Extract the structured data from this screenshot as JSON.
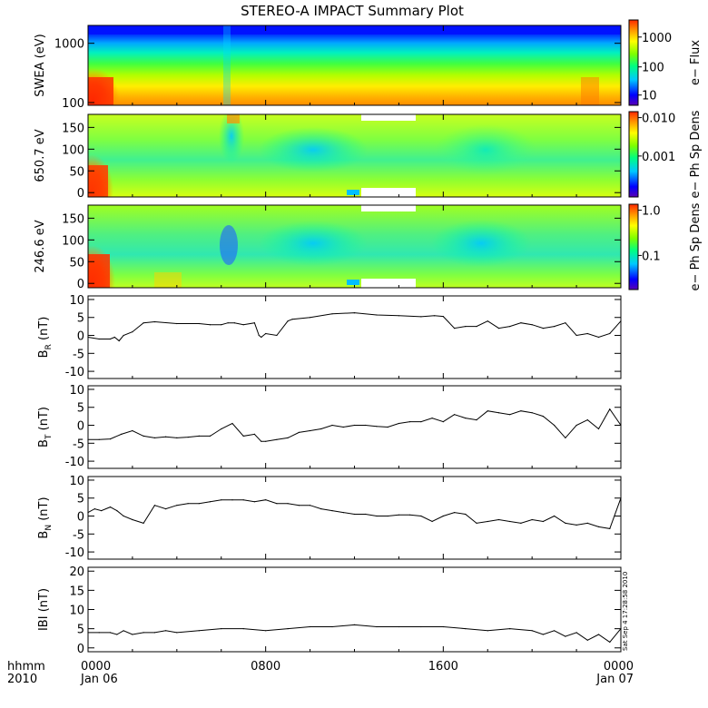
{
  "title": "STEREO-A IMPACT Summary Plot",
  "timestamp": "Sat Sep  4 17:28:58 2010",
  "time_axis": {
    "hhmm_label": "hhmm",
    "year_label": "2010",
    "ticks": [
      {
        "t": 0,
        "label": "0000",
        "sublabel": "Jan 06"
      },
      {
        "t": 8,
        "label": "0800",
        "sublabel": ""
      },
      {
        "t": 16,
        "label": "1600",
        "sublabel": ""
      },
      {
        "t": 24,
        "label": "0000",
        "sublabel": "Jan 07"
      }
    ],
    "range_hours": [
      0,
      24
    ]
  },
  "spectrograms": [
    {
      "id": "swea",
      "ylabel": "SWEA (eV)",
      "scale": "log",
      "ylim": [
        90,
        2000
      ],
      "yticks": [
        {
          "v": 100,
          "label": "100"
        },
        {
          "v": 1000,
          "label": "1000"
        }
      ],
      "cbar_label": "e− Flux",
      "cbar_ticks": [
        {
          "f": 0.12,
          "label": "10"
        },
        {
          "f": 0.45,
          "label": "100"
        },
        {
          "f": 0.8,
          "label": "1000"
        }
      ]
    },
    {
      "id": "pad650",
      "ylabel": "650.7 eV",
      "scale": "linear",
      "ylim": [
        -10,
        180
      ],
      "yticks": [
        {
          "v": 0,
          "label": "0"
        },
        {
          "v": 50,
          "label": "50"
        },
        {
          "v": 100,
          "label": "100"
        },
        {
          "v": 150,
          "label": "150"
        }
      ],
      "cbar_label": "e− Ph Sp Dens",
      "cbar_ticks": [
        {
          "f": 0.48,
          "label": "0.001"
        },
        {
          "f": 0.93,
          "label": "0.010"
        }
      ]
    },
    {
      "id": "pad246",
      "ylabel": "246.6 eV",
      "scale": "linear",
      "ylim": [
        -10,
        180
      ],
      "yticks": [
        {
          "v": 0,
          "label": "0"
        },
        {
          "v": 50,
          "label": "50"
        },
        {
          "v": 100,
          "label": "100"
        },
        {
          "v": 150,
          "label": "150"
        }
      ],
      "cbar_label": "e− Ph Sp Dens",
      "cbar_ticks": [
        {
          "f": 0.4,
          "label": "0.1"
        },
        {
          "f": 0.93,
          "label": "1.0"
        }
      ]
    }
  ],
  "chart_data": [
    {
      "type": "line",
      "id": "br",
      "ylabel_main": "B",
      "ylabel_sub": "R",
      "ylabel_unit": " (nT)",
      "ylim": [
        -12,
        11
      ],
      "yticks": [
        -10,
        -5,
        0,
        5,
        10
      ],
      "x": [
        0,
        0.5,
        1,
        1.2,
        1.4,
        1.6,
        2,
        2.5,
        3,
        4,
        5,
        5.5,
        6,
        6.3,
        6.6,
        7,
        7.5,
        7.7,
        7.8,
        8,
        8.5,
        9,
        9.2,
        10,
        11,
        12,
        13,
        14,
        15,
        15.6,
        16,
        16.5,
        17,
        17.5,
        18,
        18.5,
        19,
        19.5,
        20,
        20.5,
        21,
        21.5,
        22,
        22.5,
        23,
        23.5,
        24
      ],
      "y": [
        -0.5,
        -1,
        -1,
        -0.5,
        -1.5,
        0,
        1,
        3.5,
        3.8,
        3.3,
        3.3,
        3,
        3,
        3.5,
        3.5,
        3,
        3.5,
        0,
        -0.5,
        0.5,
        0,
        4,
        4.5,
        5,
        6,
        6.3,
        5.7,
        5.5,
        5.2,
        5.5,
        5.3,
        2,
        2.5,
        2.5,
        4,
        2,
        2.5,
        3.5,
        3,
        2,
        2.5,
        3.5,
        0,
        0.5,
        -0.5,
        0.5,
        4
      ]
    },
    {
      "type": "line",
      "id": "bt",
      "ylabel_main": "B",
      "ylabel_sub": "T",
      "ylabel_unit": " (nT)",
      "ylim": [
        -12,
        11
      ],
      "yticks": [
        -10,
        -5,
        0,
        5,
        10
      ],
      "x": [
        0,
        0.5,
        1,
        1.5,
        2,
        2.5,
        3,
        3.5,
        4,
        4.5,
        5,
        5.5,
        6,
        6.5,
        7,
        7.5,
        7.8,
        8,
        8.5,
        9,
        9.5,
        10,
        10.5,
        11,
        11.5,
        12,
        12.5,
        13,
        13.5,
        14,
        14.5,
        15,
        15.5,
        16,
        16.5,
        17,
        17.5,
        18,
        18.5,
        19,
        19.5,
        20,
        20.5,
        21,
        21.5,
        22,
        22.5,
        23,
        23.5,
        24
      ],
      "y": [
        -4,
        -4,
        -3.8,
        -2.5,
        -1.5,
        -3,
        -3.5,
        -3.2,
        -3.5,
        -3.3,
        -3,
        -3,
        -1,
        0.5,
        -3,
        -2.5,
        -4.5,
        -4.5,
        -4,
        -3.5,
        -2,
        -1.5,
        -1,
        0,
        -0.5,
        0,
        0,
        -0.3,
        -0.5,
        0.5,
        1,
        1,
        2,
        1,
        3,
        2,
        1.5,
        4,
        3.5,
        3,
        4,
        3.5,
        2.5,
        0,
        -3.5,
        0,
        1.5,
        -1,
        4.5,
        0
      ]
    },
    {
      "type": "line",
      "id": "bn",
      "ylabel_main": "B",
      "ylabel_sub": "N",
      "ylabel_unit": " (nT)",
      "ylim": [
        -12,
        11
      ],
      "yticks": [
        -10,
        -5,
        0,
        5,
        10
      ],
      "x": [
        0,
        0.3,
        0.6,
        1,
        1.3,
        1.6,
        2,
        2.5,
        3,
        3.5,
        4,
        4.5,
        5,
        5.5,
        6,
        6.5,
        7,
        7.5,
        8,
        8.5,
        9,
        9.5,
        10,
        10.5,
        11,
        11.5,
        12,
        12.5,
        13,
        13.5,
        14,
        14.5,
        15,
        15.5,
        16,
        16.5,
        17,
        17.5,
        18,
        18.5,
        19,
        19.5,
        20,
        20.5,
        21,
        21.5,
        22,
        22.5,
        23,
        23.5,
        24
      ],
      "y": [
        1,
        2,
        1.5,
        2.5,
        1.5,
        0,
        -1,
        -2,
        3,
        2,
        3,
        3.5,
        3.5,
        4,
        4.5,
        4.5,
        4.5,
        4,
        4.5,
        3.5,
        3.5,
        3,
        3,
        2,
        1.5,
        1,
        0.5,
        0.5,
        0,
        0,
        0.3,
        0.3,
        0,
        -1.5,
        0,
        1,
        0.5,
        -2,
        -1.5,
        -1,
        -1.5,
        -2,
        -1,
        -1.5,
        0,
        -2,
        -2.5,
        -2,
        -3,
        -3.5,
        5
      ]
    },
    {
      "type": "line",
      "id": "bmag",
      "ylabel_main": "IBI",
      "ylabel_sub": "",
      "ylabel_unit": " (nT)",
      "ylim": [
        -1,
        21
      ],
      "yticks": [
        0,
        5,
        10,
        15,
        20
      ],
      "x": [
        0,
        0.5,
        1,
        1.3,
        1.6,
        2,
        2.5,
        3,
        3.5,
        4,
        5,
        6,
        7,
        8,
        9,
        10,
        11,
        12,
        13,
        14,
        15,
        16,
        17,
        18,
        19,
        20,
        20.5,
        21,
        21.5,
        22,
        22.5,
        23,
        23.5,
        24
      ],
      "y": [
        4,
        4,
        4,
        3.5,
        4.5,
        3.5,
        4,
        4,
        4.5,
        4,
        4.5,
        5,
        5,
        4.5,
        5,
        5.5,
        5.5,
        6,
        5.5,
        5.5,
        5.5,
        5.5,
        5,
        4.5,
        5,
        4.5,
        3.5,
        4.5,
        3,
        4,
        2,
        3.5,
        1.5,
        5
      ]
    }
  ]
}
